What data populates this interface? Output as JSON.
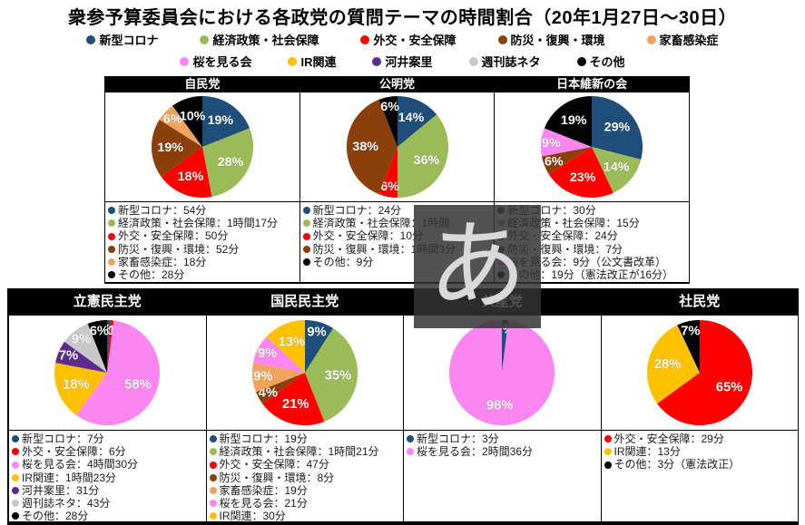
{
  "title": "衆参予算委員会における各政党の質問テーマの時間割合（20年1月27日～30日）",
  "categories": {
    "corona": {
      "label": "新型コロナ",
      "color": "#1F4E7A"
    },
    "economy": {
      "label": "経済政策・社会保障",
      "color": "#9BBB59"
    },
    "diplomacy": {
      "label": "外交・安全保障",
      "color": "#FF0000"
    },
    "disaster": {
      "label": "防災・復興・環境",
      "color": "#8B400C"
    },
    "livestock": {
      "label": "家畜感染症",
      "color": "#F0A35C"
    },
    "sakura": {
      "label": "桜を見る会",
      "color": "#FB86F2"
    },
    "ir": {
      "label": "IR関連",
      "color": "#FFC000"
    },
    "kawai": {
      "label": "河井案里",
      "color": "#5B2C8D"
    },
    "tabloid": {
      "label": "週刊誌ネタ",
      "color": "#C8C8C8"
    },
    "other": {
      "label": "その他",
      "color": "#000000"
    }
  },
  "legend": {
    "rows": [
      [
        "corona",
        "economy",
        "diplomacy",
        "disaster",
        "livestock"
      ],
      [
        "sakura",
        "ir",
        "kawai",
        "tabloid",
        "other"
      ]
    ]
  },
  "ime_overlay": {
    "char": "あ"
  },
  "chart_data": [
    {
      "type": "pie",
      "row": "top",
      "party": "自民党",
      "slices": [
        {
          "cat": "corona",
          "pct": 19
        },
        {
          "cat": "economy",
          "pct": 28
        },
        {
          "cat": "diplomacy",
          "pct": 18
        },
        {
          "cat": "disaster",
          "pct": 19
        },
        {
          "cat": "livestock",
          "pct": 6
        },
        {
          "cat": "other",
          "pct": 10
        }
      ],
      "items": [
        {
          "cat": "corona",
          "text": "新型コロナ：54分"
        },
        {
          "cat": "economy",
          "text": "経済政策・社会保障：1時間17分"
        },
        {
          "cat": "diplomacy",
          "text": "外交・安全保障：50分"
        },
        {
          "cat": "disaster",
          "text": "防災・復興・環境：52分"
        },
        {
          "cat": "livestock",
          "text": "家畜感染症：18分"
        },
        {
          "cat": "other",
          "text": "その他：28分"
        }
      ]
    },
    {
      "type": "pie",
      "row": "top",
      "party": "公明党",
      "slices": [
        {
          "cat": "corona",
          "pct": 14
        },
        {
          "cat": "economy",
          "pct": 36
        },
        {
          "cat": "diplomacy",
          "pct": 6
        },
        {
          "cat": "disaster",
          "pct": 38
        },
        {
          "cat": "other",
          "pct": 6
        }
      ],
      "items": [
        {
          "cat": "corona",
          "text": "新型コロナ：24分"
        },
        {
          "cat": "economy",
          "text": "経済政策・社会保障：1時間"
        },
        {
          "cat": "diplomacy",
          "text": "外交・安全保障：10分"
        },
        {
          "cat": "disaster",
          "text": "防災・復興・環境：1時間3分"
        },
        {
          "cat": "other",
          "text": "その他：9分"
        }
      ]
    },
    {
      "type": "pie",
      "row": "top",
      "party": "日本維新の会",
      "slices": [
        {
          "cat": "corona",
          "pct": 29
        },
        {
          "cat": "economy",
          "pct": 14
        },
        {
          "cat": "diplomacy",
          "pct": 23
        },
        {
          "cat": "disaster",
          "pct": 6
        },
        {
          "cat": "sakura",
          "pct": 9
        },
        {
          "cat": "other",
          "pct": 19
        }
      ],
      "items": [
        {
          "cat": "corona",
          "text": "新型コロナ：30分"
        },
        {
          "cat": "economy",
          "text": "経済政策・社会保障：15分"
        },
        {
          "cat": "diplomacy",
          "text": "外交・安全保障：24分"
        },
        {
          "cat": "disaster",
          "text": "防災・復興・環境：7分"
        },
        {
          "cat": "sakura",
          "text": "桜を見る会：9分（公文書改革）"
        },
        {
          "cat": "other",
          "text": "その他：19分（憲法改正が16分）"
        }
      ]
    },
    {
      "type": "pie",
      "row": "bottom",
      "party": "立憲民主党",
      "slices": [
        {
          "cat": "corona",
          "pct": 1
        },
        {
          "cat": "diplomacy",
          "pct": 1
        },
        {
          "cat": "sakura",
          "pct": 58
        },
        {
          "cat": "ir",
          "pct": 18
        },
        {
          "cat": "kawai",
          "pct": 7
        },
        {
          "cat": "tabloid",
          "pct": 9
        },
        {
          "cat": "other",
          "pct": 6
        }
      ],
      "items": [
        {
          "cat": "corona",
          "text": "新型コロナ：7分"
        },
        {
          "cat": "diplomacy",
          "text": "外交・安全保障：6分"
        },
        {
          "cat": "sakura",
          "text": "桜を見る会：4時間30分"
        },
        {
          "cat": "ir",
          "text": "IR関連：1時間23分"
        },
        {
          "cat": "kawai",
          "text": "河井案里：31分"
        },
        {
          "cat": "tabloid",
          "text": "週刊誌ネタ：43分"
        },
        {
          "cat": "other",
          "text": "その他：28分"
        }
      ]
    },
    {
      "type": "pie",
      "row": "bottom",
      "party": "国民民主党",
      "slices": [
        {
          "cat": "corona",
          "pct": 9
        },
        {
          "cat": "economy",
          "pct": 35
        },
        {
          "cat": "diplomacy",
          "pct": 21
        },
        {
          "cat": "disaster",
          "pct": 4
        },
        {
          "cat": "livestock",
          "pct": 9
        },
        {
          "cat": "sakura",
          "pct": 9
        },
        {
          "cat": "ir",
          "pct": 13
        }
      ],
      "items": [
        {
          "cat": "corona",
          "text": "新型コロナ：19分"
        },
        {
          "cat": "economy",
          "text": "経済政策・社会保障：1時間21分"
        },
        {
          "cat": "diplomacy",
          "text": "外交・安全保障：47分"
        },
        {
          "cat": "disaster",
          "text": "防災・復興・環境：8分"
        },
        {
          "cat": "livestock",
          "text": "家畜感染症：19分"
        },
        {
          "cat": "sakura",
          "text": "桜を見る会：21分"
        },
        {
          "cat": "ir",
          "text": "IR関連：30分"
        }
      ]
    },
    {
      "type": "pie",
      "row": "bottom",
      "party": "共産党",
      "slices": [
        {
          "cat": "corona",
          "pct": 2
        },
        {
          "cat": "sakura",
          "pct": 98
        }
      ],
      "items": [
        {
          "cat": "corona",
          "text": "新型コロナ：3分"
        },
        {
          "cat": "sakura",
          "text": "桜を見る会：2時間36分"
        }
      ]
    },
    {
      "type": "pie",
      "row": "bottom",
      "party": "社民党",
      "slices": [
        {
          "cat": "diplomacy",
          "pct": 65
        },
        {
          "cat": "ir",
          "pct": 28
        },
        {
          "cat": "other",
          "pct": 7
        }
      ],
      "items": [
        {
          "cat": "diplomacy",
          "text": "外交・安全保障：29分"
        },
        {
          "cat": "ir",
          "text": "IR関連：13分"
        },
        {
          "cat": "other",
          "text": "その他：3分（憲法改正）"
        }
      ]
    }
  ]
}
